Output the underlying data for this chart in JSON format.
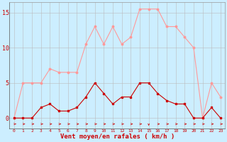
{
  "x": [
    0,
    1,
    2,
    3,
    4,
    5,
    6,
    7,
    8,
    9,
    10,
    11,
    12,
    13,
    14,
    15,
    16,
    17,
    18,
    19,
    20,
    21,
    22,
    23
  ],
  "avg_wind": [
    0,
    0,
    0,
    1.5,
    2,
    1,
    1,
    1.5,
    3,
    5,
    3.5,
    2,
    3,
    3,
    5,
    5,
    3.5,
    2.5,
    2,
    2,
    0,
    0,
    1.5,
    0
  ],
  "gust_wind": [
    0,
    5,
    5,
    5,
    7,
    6.5,
    6.5,
    6.5,
    10.5,
    13,
    10.5,
    13,
    10.5,
    11.5,
    15.5,
    15.5,
    15.5,
    13,
    13,
    11.5,
    10,
    0,
    5,
    3
  ],
  "avg_color": "#cc0000",
  "gust_color": "#ff9999",
  "background_color": "#cceeff",
  "grid_color": "#bbbbbb",
  "xlabel": "Vent moyen/en rafales ( km/h )",
  "xlabel_color": "#cc0000",
  "tick_color": "#cc0000",
  "yticks": [
    0,
    5,
    10,
    15
  ],
  "ylim": [
    -1.5,
    16.5
  ],
  "xlim": [
    -0.5,
    23.5
  ],
  "figsize": [
    3.2,
    2.0
  ],
  "dpi": 100
}
